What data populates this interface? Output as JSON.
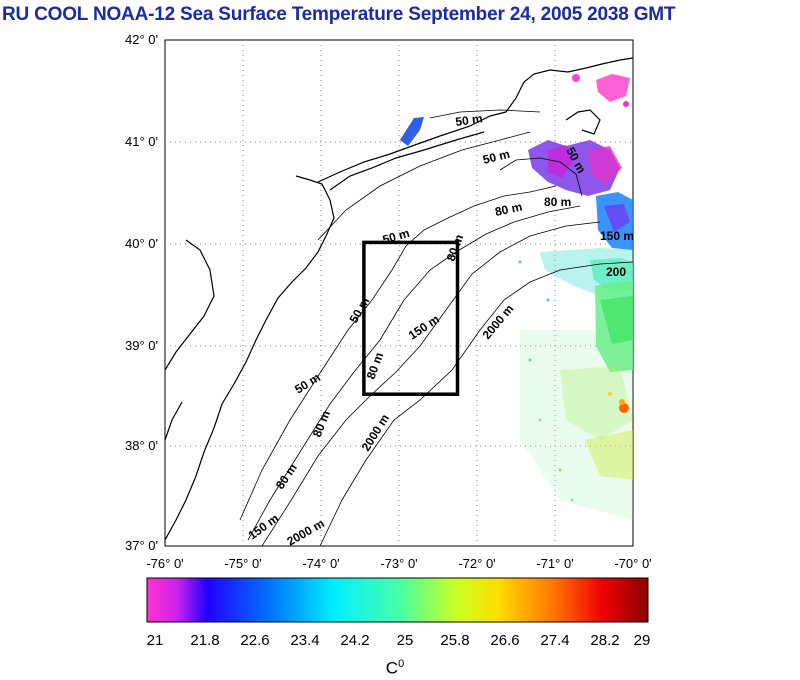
{
  "title": "RU COOL  NOAA-12 Sea Surface Temperature September 24, 2005 2038 GMT",
  "colors": {
    "title": "#1a2aa8",
    "frame": "#000000",
    "grid": "#888888"
  },
  "map": {
    "lat_labels": [
      "42° 0'",
      "41° 0'",
      "40° 0'",
      "39° 0'",
      "38° 0'",
      "37° 0'"
    ],
    "lon_labels": [
      "-76° 0'",
      "-75° 0'",
      "-74° 0'",
      "-73° 0'",
      "-72° 0'",
      "-71° 0'",
      "-70° 0'"
    ],
    "lon_range": [
      -76,
      -70
    ],
    "lat_range": [
      37,
      42
    ],
    "study_box": {
      "lon_min": -73.45,
      "lon_max": -72.25,
      "lat_min": 38.5,
      "lat_max": 40.0
    },
    "contour_labels": [
      "50 m",
      "50 m",
      "50 m",
      "50 m",
      "50 m",
      "50 m",
      "80 m",
      "80 m",
      "80 m",
      "80 m",
      "80 m",
      "80 m",
      "150 m",
      "150 m",
      "150 m",
      "2000 m",
      "2000 m",
      "2000 m",
      "200"
    ]
  },
  "colorbar": {
    "ticks": [
      "21",
      "21.8",
      "22.6",
      "23.4",
      "24.2",
      "25",
      "25.8",
      "26.6",
      "27.4",
      "28.2",
      "29"
    ],
    "unit_base": "C",
    "unit_sup": "0"
  }
}
